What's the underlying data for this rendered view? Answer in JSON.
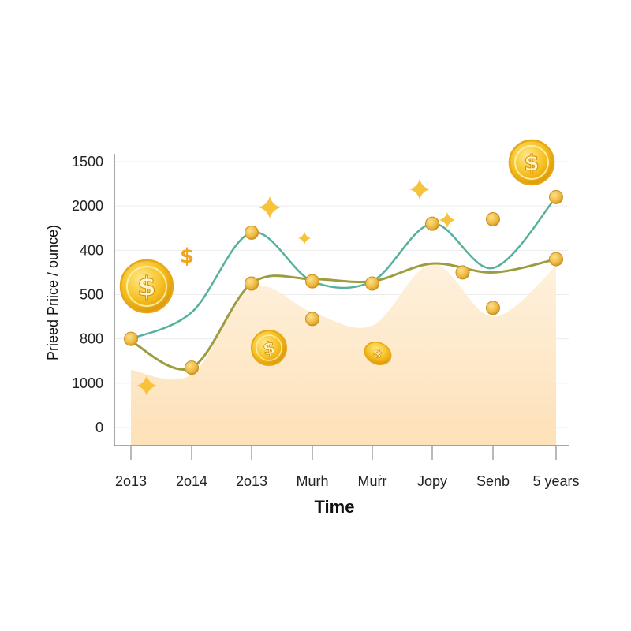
{
  "chart_data": {
    "type": "line",
    "title": "",
    "xlabel": "Time",
    "ylabel": "Prieed Priice / ounce)",
    "categories": [
      "2o13",
      "2o14",
      "2o13",
      "Murh",
      "Muṙr",
      "Jopy",
      "Senb",
      "5 years"
    ],
    "y_tick_labels": [
      "1500",
      "2000",
      "400",
      "500",
      "800",
      "1000",
      "0"
    ],
    "y_tick_values": [
      6,
      5,
      4,
      3,
      2,
      1,
      0
    ],
    "ylim": [
      0,
      6
    ],
    "grid": true,
    "legend": "none",
    "series": [
      {
        "color": "#56b09e",
        "values": [
          2.0,
          2.6,
          4.4,
          3.3,
          3.3,
          4.6,
          3.6,
          5.2
        ]
      },
      {
        "color": "#9c9c40",
        "values": [
          1.95,
          1.35,
          3.25,
          3.35,
          3.3,
          3.7,
          3.5,
          3.8
        ]
      },
      {
        "color": "#fde9cc",
        "values": [
          1.3,
          1.2,
          3.15,
          2.6,
          2.3,
          3.7,
          2.5,
          3.65
        ]
      }
    ],
    "markers": [
      {
        "x": 0,
        "y": 2.0
      },
      {
        "x": 1,
        "y": 1.35
      },
      {
        "x": 2,
        "y": 4.4
      },
      {
        "x": 2,
        "y": 3.25
      },
      {
        "x": 3,
        "y": 3.3
      },
      {
        "x": 3,
        "y": 2.45
      },
      {
        "x": 4,
        "y": 3.25
      },
      {
        "x": 5,
        "y": 4.6
      },
      {
        "x": 5.5,
        "y": 3.5
      },
      {
        "x": 6,
        "y": 4.7
      },
      {
        "x": 6,
        "y": 2.7
      },
      {
        "x": 7,
        "y": 5.2
      },
      {
        "x": 7,
        "y": 3.8
      }
    ],
    "decorations": {
      "coin_icon": "gold-dollar-coin",
      "sparkle_icon": "four-point-sparkle",
      "dollar_glyph": "$",
      "gold": "#f5b800",
      "gold_light": "#ffdf70"
    }
  }
}
